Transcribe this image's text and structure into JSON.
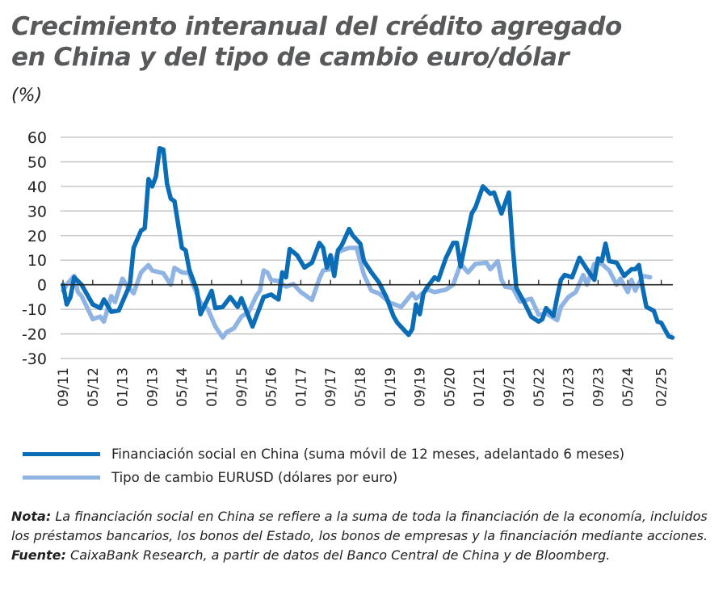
{
  "title_line1": "Crecimiento interanual del crédito agregado",
  "title_line2": "en China y del tipo de cambio euro/dólar",
  "unit": "(%)",
  "colors": {
    "dark": "#0b6db5",
    "light": "#8fb4e3",
    "grid": "#bdbdbd",
    "axis": "#222222"
  },
  "chart_data": {
    "type": "line",
    "title": "Crecimiento interanual del crédito agregado en China y del tipo de cambio euro/dólar",
    "ylabel": "(%)",
    "ylim": [
      -30,
      60
    ],
    "yticks": [
      60,
      50,
      40,
      30,
      20,
      10,
      0,
      -10,
      -20,
      -30
    ],
    "xlim": [
      "2011-09",
      "2025-05"
    ],
    "xtick_labels": [
      "09/11",
      "05/12",
      "01/13",
      "09/13",
      "05/14",
      "01/15",
      "09/15",
      "05/16",
      "01/17",
      "09/17",
      "05/18",
      "01/19",
      "09/19",
      "05/20",
      "01/21",
      "09/21",
      "05/22",
      "01/23",
      "09/23",
      "05/24",
      "02/25"
    ],
    "grid": "horizontal",
    "legend": "bottom",
    "series": [
      {
        "name": "Financiación social en China (suma móvil de 12 meses, adelantado 6 meses)",
        "color": "#0b6db5",
        "points": [
          [
            "2011-09",
            0
          ],
          [
            "2011-10",
            -8
          ],
          [
            "2011-11",
            -5
          ],
          [
            "2011-12",
            3
          ],
          [
            "2012-02",
            0
          ],
          [
            "2012-05",
            -8
          ],
          [
            "2012-07",
            -9.5
          ],
          [
            "2012-08",
            -6
          ],
          [
            "2012-10",
            -11
          ],
          [
            "2012-12",
            -10.5
          ],
          [
            "2013-03",
            0
          ],
          [
            "2013-04",
            15
          ],
          [
            "2013-06",
            22
          ],
          [
            "2013-07",
            23
          ],
          [
            "2013-08",
            43
          ],
          [
            "2013-09",
            40
          ],
          [
            "2013-10",
            44
          ],
          [
            "2013-11",
            55.5
          ],
          [
            "2013-12",
            55
          ],
          [
            "2014-01",
            41
          ],
          [
            "2014-02",
            35
          ],
          [
            "2014-03",
            34
          ],
          [
            "2014-05",
            15
          ],
          [
            "2014-06",
            14
          ],
          [
            "2014-07",
            6
          ],
          [
            "2014-09",
            -2
          ],
          [
            "2014-10",
            -12
          ],
          [
            "2015-01",
            -2.5
          ],
          [
            "2015-02",
            -9.5
          ],
          [
            "2015-04",
            -9
          ],
          [
            "2015-06",
            -5
          ],
          [
            "2015-08",
            -9
          ],
          [
            "2015-09",
            -5.5
          ],
          [
            "2015-12",
            -17
          ],
          [
            "2016-03",
            -5
          ],
          [
            "2016-05",
            -4
          ],
          [
            "2016-07",
            -6
          ],
          [
            "2016-08",
            5
          ],
          [
            "2016-09",
            3
          ],
          [
            "2016-10",
            14.5
          ],
          [
            "2016-12",
            12
          ],
          [
            "2017-02",
            7
          ],
          [
            "2017-04",
            9
          ],
          [
            "2017-06",
            17
          ],
          [
            "2017-07",
            15
          ],
          [
            "2017-08",
            7
          ],
          [
            "2017-09",
            12
          ],
          [
            "2017-10",
            3.6
          ],
          [
            "2017-11",
            14
          ],
          [
            "2017-12",
            16
          ],
          [
            "2018-02",
            22.7
          ],
          [
            "2018-03",
            20
          ],
          [
            "2018-05",
            16.7
          ],
          [
            "2018-06",
            9.6
          ],
          [
            "2018-08",
            5
          ],
          [
            "2018-10",
            1
          ],
          [
            "2018-12",
            -5
          ],
          [
            "2019-02",
            -13
          ],
          [
            "2019-03",
            -15.5
          ],
          [
            "2019-06",
            -20.4
          ],
          [
            "2019-07",
            -18
          ],
          [
            "2019-08",
            -8
          ],
          [
            "2019-09",
            -12
          ],
          [
            "2019-10",
            -3.5
          ],
          [
            "2019-11",
            -1
          ],
          [
            "2020-01",
            3
          ],
          [
            "2020-02",
            2
          ],
          [
            "2020-04",
            10.7
          ],
          [
            "2020-06",
            17
          ],
          [
            "2020-07",
            17
          ],
          [
            "2020-08",
            7.4
          ],
          [
            "2020-09",
            15
          ],
          [
            "2020-11",
            29
          ],
          [
            "2020-12",
            31.5
          ],
          [
            "2021-02",
            40
          ],
          [
            "2021-04",
            37
          ],
          [
            "2021-05",
            37.5
          ],
          [
            "2021-07",
            29
          ],
          [
            "2021-09",
            37.5
          ],
          [
            "2021-10",
            16
          ],
          [
            "2021-11",
            -1.3
          ],
          [
            "2022-01",
            -6.8
          ],
          [
            "2022-03",
            -13
          ],
          [
            "2022-05",
            -15
          ],
          [
            "2022-06",
            -14
          ],
          [
            "2022-07",
            -9.5
          ],
          [
            "2022-09",
            -12.7
          ],
          [
            "2022-10",
            -5
          ],
          [
            "2022-11",
            2
          ],
          [
            "2022-12",
            4
          ],
          [
            "2023-02",
            3
          ],
          [
            "2023-04",
            11
          ],
          [
            "2023-06",
            6.3
          ],
          [
            "2023-08",
            2
          ],
          [
            "2023-09",
            10.7
          ],
          [
            "2023-10",
            9.6
          ],
          [
            "2023-11",
            16.7
          ],
          [
            "2023-12",
            9.6
          ],
          [
            "2024-02",
            9
          ],
          [
            "2024-04",
            3.6
          ],
          [
            "2024-06",
            6.3
          ],
          [
            "2024-07",
            6.3
          ],
          [
            "2024-08",
            8
          ],
          [
            "2024-09",
            -1.3
          ],
          [
            "2024-10",
            -9
          ],
          [
            "2024-12",
            -10.6
          ],
          [
            "2025-01",
            -15
          ],
          [
            "2025-02",
            -15.5
          ],
          [
            "2025-04",
            -21
          ],
          [
            "2025-05",
            -21.5
          ]
        ]
      },
      {
        "name": "Tipo de cambio EURUSD (dólares por euro)",
        "color": "#8fb4e3",
        "points": [
          [
            "2011-09",
            -2.4
          ],
          [
            "2011-10",
            0
          ],
          [
            "2011-12",
            3.6
          ],
          [
            "2012-01",
            -3
          ],
          [
            "2012-02",
            -4.6
          ],
          [
            "2012-05",
            -14
          ],
          [
            "2012-07",
            -13
          ],
          [
            "2012-08",
            -15
          ],
          [
            "2012-10",
            -4.6
          ],
          [
            "2012-11",
            -7
          ],
          [
            "2013-01",
            2.5
          ],
          [
            "2013-02",
            0
          ],
          [
            "2013-04",
            -3.5
          ],
          [
            "2013-06",
            5
          ],
          [
            "2013-08",
            8
          ],
          [
            "2013-09",
            5.8
          ],
          [
            "2013-12",
            4.7
          ],
          [
            "2014-02",
            0
          ],
          [
            "2014-03",
            6.9
          ],
          [
            "2014-05",
            5
          ],
          [
            "2014-07",
            4.7
          ],
          [
            "2014-08",
            0
          ],
          [
            "2014-10",
            -7.3
          ],
          [
            "2014-12",
            -10
          ],
          [
            "2015-02",
            -17
          ],
          [
            "2015-04",
            -21.5
          ],
          [
            "2015-05",
            -19.3
          ],
          [
            "2015-07",
            -17.7
          ],
          [
            "2015-09",
            -13
          ],
          [
            "2015-11",
            -11
          ],
          [
            "2016-01",
            -4.6
          ],
          [
            "2016-02",
            -2.4
          ],
          [
            "2016-03",
            5.8
          ],
          [
            "2016-04",
            5
          ],
          [
            "2016-05",
            2
          ],
          [
            "2016-07",
            1.5
          ],
          [
            "2016-09",
            -0.8
          ],
          [
            "2016-11",
            0.3
          ],
          [
            "2017-01",
            -3
          ],
          [
            "2017-04",
            -6.2
          ],
          [
            "2017-06",
            2.5
          ],
          [
            "2017-07",
            5.8
          ],
          [
            "2017-09",
            6.3
          ],
          [
            "2017-11",
            13.4
          ],
          [
            "2018-02",
            15
          ],
          [
            "2018-04",
            15
          ],
          [
            "2018-06",
            4
          ],
          [
            "2018-08",
            -2.4
          ],
          [
            "2018-10",
            -3.5
          ],
          [
            "2019-01",
            -7.3
          ],
          [
            "2019-04",
            -9
          ],
          [
            "2019-07",
            -3.5
          ],
          [
            "2019-08",
            -5.7
          ],
          [
            "2019-11",
            -1.9
          ],
          [
            "2020-01",
            -3
          ],
          [
            "2020-04",
            -2
          ],
          [
            "2020-06",
            0
          ],
          [
            "2020-08",
            8.5
          ],
          [
            "2020-10",
            5
          ],
          [
            "2020-12",
            8.5
          ],
          [
            "2021-03",
            9
          ],
          [
            "2021-04",
            6.3
          ],
          [
            "2021-06",
            9.6
          ],
          [
            "2021-07",
            2
          ],
          [
            "2021-08",
            -0.8
          ],
          [
            "2021-10",
            -1.3
          ],
          [
            "2021-12",
            -6.8
          ],
          [
            "2022-03",
            -5.7
          ],
          [
            "2022-05",
            -12.2
          ],
          [
            "2022-07",
            -11.7
          ],
          [
            "2022-10",
            -14.4
          ],
          [
            "2022-11",
            -9
          ],
          [
            "2023-01",
            -5
          ],
          [
            "2023-03",
            -3
          ],
          [
            "2023-05",
            4
          ],
          [
            "2023-06",
            0
          ],
          [
            "2023-08",
            8.5
          ],
          [
            "2023-10",
            8.5
          ],
          [
            "2023-12",
            5.8
          ],
          [
            "2024-02",
            0
          ],
          [
            "2024-03",
            2.5
          ],
          [
            "2024-05",
            -3
          ],
          [
            "2024-06",
            2
          ],
          [
            "2024-07",
            -2.4
          ],
          [
            "2024-09",
            3.6
          ],
          [
            "2024-11",
            3
          ]
        ]
      }
    ]
  },
  "legend": [
    {
      "label": "Financiación social en China (suma móvil de 12 meses, adelantado 6 meses)"
    },
    {
      "label": "Tipo de cambio EURUSD (dólares por euro)"
    }
  ],
  "notes": {
    "nota_label": "Nota:",
    "nota_text": " La financiación social en China se refiere a la suma de toda la financiación de la economía, incluidos los préstamos bancarios, los bonos del Estado, los bonos de empresas y la financiación mediante acciones.",
    "fuente_label": "Fuente:",
    "fuente_text": " CaixaBank Research, a partir de datos del Banco Central de China y de Bloomberg."
  }
}
